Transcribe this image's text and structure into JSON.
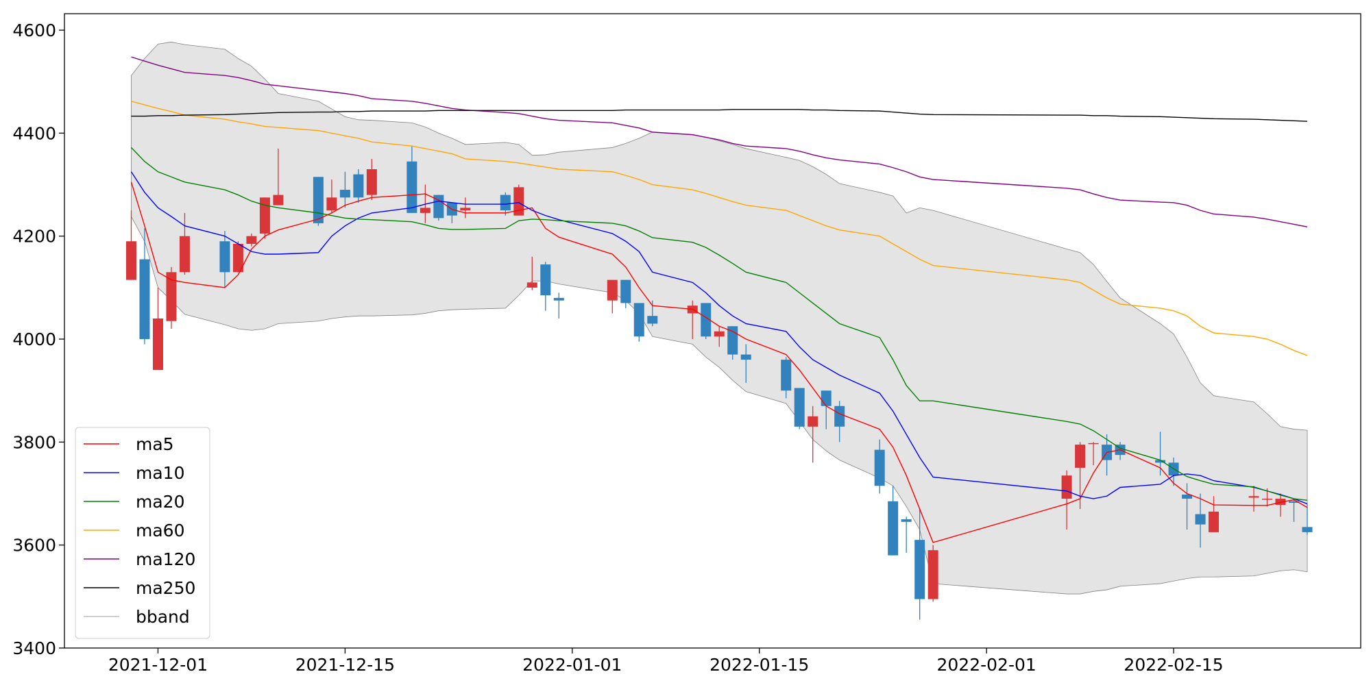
{
  "chart_data": {
    "type": "candlestick",
    "x": [
      "2021-11-29",
      "2021-11-30",
      "2021-12-01",
      "2021-12-02",
      "2021-12-03",
      "2021-12-06",
      "2021-12-07",
      "2021-12-08",
      "2021-12-09",
      "2021-12-10",
      "2021-12-13",
      "2021-12-14",
      "2021-12-15",
      "2021-12-16",
      "2021-12-17",
      "2021-12-20",
      "2021-12-21",
      "2021-12-22",
      "2021-12-23",
      "2021-12-24",
      "2021-12-27",
      "2021-12-28",
      "2021-12-29",
      "2021-12-30",
      "2021-12-31",
      "2022-01-04",
      "2022-01-05",
      "2022-01-06",
      "2022-01-07",
      "2022-01-10",
      "2022-01-11",
      "2022-01-12",
      "2022-01-13",
      "2022-01-14",
      "2022-01-17",
      "2022-01-18",
      "2022-01-19",
      "2022-01-20",
      "2022-01-21",
      "2022-01-24",
      "2022-01-25",
      "2022-01-26",
      "2022-01-27",
      "2022-01-28",
      "2022-02-07",
      "2022-02-08",
      "2022-02-09",
      "2022-02-10",
      "2022-02-11",
      "2022-02-14",
      "2022-02-15",
      "2022-02-16",
      "2022-02-17",
      "2022-02-18",
      "2022-02-21",
      "2022-02-22",
      "2022-02-23",
      "2022-02-24",
      "2022-02-25"
    ],
    "open": [
      4115,
      4155,
      3940,
      4035,
      4130,
      4190,
      4130,
      4185,
      4205,
      4260,
      4315,
      4250,
      4290,
      4320,
      4280,
      4345,
      4245,
      4280,
      4265,
      4250,
      4280,
      4240,
      4100,
      4145,
      4080,
      4075,
      4115,
      4070,
      4045,
      4050,
      4070,
      4005,
      4025,
      3970,
      3960,
      3905,
      3830,
      3900,
      3870,
      3785,
      3685,
      3650,
      3610,
      3495,
      3690,
      3750,
      3796,
      3795,
      3795,
      3765,
      3760,
      3698,
      3660,
      3625,
      3692,
      3688,
      3678,
      3685,
      3635
    ],
    "high": [
      4250,
      4215,
      4100,
      4140,
      4245,
      4210,
      4190,
      4205,
      4275,
      4370,
      4315,
      4310,
      4325,
      4330,
      4350,
      4375,
      4300,
      4280,
      4265,
      4275,
      4285,
      4300,
      4160,
      4150,
      4090,
      4115,
      4115,
      4070,
      4075,
      4075,
      4070,
      4025,
      4025,
      3990,
      3965,
      3905,
      3870,
      3900,
      3880,
      3805,
      3715,
      3655,
      3670,
      3600,
      3745,
      3800,
      3800,
      3815,
      3800,
      3820,
      3770,
      3720,
      3700,
      3695,
      3715,
      3710,
      3700,
      3690,
      3680
    ],
    "low": [
      4115,
      3990,
      3940,
      4020,
      4125,
      4100,
      4130,
      4180,
      4195,
      4260,
      4220,
      4245,
      4255,
      4265,
      4270,
      4245,
      4225,
      4230,
      4225,
      4235,
      4240,
      4240,
      4095,
      4055,
      4040,
      4050,
      4060,
      3995,
      4025,
      4000,
      4000,
      3985,
      3960,
      3915,
      3885,
      3825,
      3760,
      3825,
      3800,
      3700,
      3580,
      3585,
      3455,
      3490,
      3630,
      3670,
      3755,
      3735,
      3765,
      3735,
      3715,
      3630,
      3595,
      3625,
      3665,
      3675,
      3655,
      3645,
      3620
    ],
    "close": [
      4190,
      4000,
      4040,
      4130,
      4200,
      4130,
      4185,
      4200,
      4275,
      4280,
      4225,
      4275,
      4275,
      4275,
      4330,
      4245,
      4255,
      4235,
      4240,
      4255,
      4250,
      4295,
      4110,
      4085,
      4075,
      4115,
      4070,
      4005,
      4030,
      4065,
      4005,
      4015,
      3970,
      3960,
      3900,
      3830,
      3850,
      3870,
      3830,
      3715,
      3580,
      3645,
      3495,
      3590,
      3735,
      3795,
      3798,
      3765,
      3775,
      3760,
      3735,
      3690,
      3640,
      3665,
      3695,
      3690,
      3690,
      3682,
      3625
    ],
    "up_color": "#d9363a",
    "down_color": "#3182bd",
    "lines": [
      {
        "name": "ma5",
        "color": "#ff0000",
        "values": [
          4305,
          4220,
          4130,
          4115,
          4110,
          4100,
          4125,
          4175,
          4200,
          4212,
          4233,
          4245,
          4260,
          4268,
          4275,
          4280,
          4282,
          4270,
          4252,
          4245,
          4245,
          4250,
          4255,
          4215,
          4198,
          4165,
          4140,
          4100,
          4065,
          4058,
          4042,
          4025,
          4015,
          4000,
          3970,
          3940,
          3905,
          3870,
          3855,
          3825,
          3790,
          3735,
          3670,
          3605,
          3680,
          3690,
          3740,
          3780,
          3785,
          3750,
          3720,
          3700,
          3690,
          3678,
          3677,
          3677,
          3683,
          3688,
          3673
        ]
      },
      {
        "name": "ma10",
        "color": "#0000ff",
        "values": [
          4325,
          4285,
          4255,
          4238,
          4220,
          4200,
          4185,
          4170,
          4165,
          4165,
          4168,
          4200,
          4220,
          4235,
          4245,
          4255,
          4262,
          4268,
          4265,
          4262,
          4262,
          4265,
          4250,
          4240,
          4232,
          4205,
          4190,
          4170,
          4130,
          4110,
          4090,
          4065,
          4045,
          4030,
          4015,
          3985,
          3960,
          3945,
          3930,
          3895,
          3860,
          3815,
          3770,
          3732,
          3705,
          3695,
          3690,
          3695,
          3712,
          3718,
          3735,
          3738,
          3735,
          3725,
          3712,
          3705,
          3698,
          3690,
          3680
        ]
      },
      {
        "name": "ma20",
        "color": "#008000",
        "values": [
          4372,
          4345,
          4325,
          4315,
          4305,
          4290,
          4280,
          4268,
          4260,
          4255,
          4245,
          4240,
          4235,
          4233,
          4232,
          4228,
          4222,
          4215,
          4213,
          4213,
          4215,
          4230,
          4233,
          4232,
          4230,
          4225,
          4220,
          4210,
          4197,
          4188,
          4178,
          4163,
          4147,
          4130,
          4110,
          4090,
          4070,
          4050,
          4030,
          4003,
          3960,
          3910,
          3880,
          3880,
          3840,
          3835,
          3822,
          3805,
          3788,
          3765,
          3748,
          3733,
          3725,
          3718,
          3713,
          3705,
          3697,
          3690,
          3687
        ]
      },
      {
        "name": "ma60",
        "color": "#ffa500",
        "values": [
          4462,
          4455,
          4448,
          4442,
          4435,
          4427,
          4422,
          4418,
          4413,
          4411,
          4405,
          4400,
          4395,
          4390,
          4383,
          4375,
          4370,
          4365,
          4360,
          4350,
          4345,
          4342,
          4338,
          4334,
          4330,
          4325,
          4318,
          4310,
          4300,
          4290,
          4283,
          4275,
          4267,
          4260,
          4250,
          4240,
          4230,
          4220,
          4212,
          4200,
          4185,
          4170,
          4155,
          4143,
          4115,
          4110,
          4095,
          4080,
          4068,
          4060,
          4055,
          4045,
          4025,
          4012,
          4005,
          4000,
          3990,
          3978,
          3968
        ]
      },
      {
        "name": "ma120",
        "color": "#800080",
        "values": [
          4548,
          4540,
          4532,
          4525,
          4518,
          4512,
          4508,
          4502,
          4495,
          4492,
          4483,
          4480,
          4477,
          4473,
          4467,
          4462,
          4458,
          4453,
          4448,
          4445,
          4440,
          4438,
          4433,
          4428,
          4425,
          4420,
          4415,
          4410,
          4402,
          4397,
          4392,
          4387,
          4380,
          4375,
          4370,
          4365,
          4358,
          4352,
          4348,
          4340,
          4333,
          4325,
          4315,
          4310,
          4293,
          4290,
          4282,
          4275,
          4270,
          4266,
          4265,
          4260,
          4250,
          4243,
          4237,
          4233,
          4228,
          4223,
          4218
        ]
      },
      {
        "name": "ma250",
        "color": "#000000",
        "values": [
          4433,
          4433,
          4434,
          4434,
          4435,
          4436,
          4437,
          4438,
          4439,
          4440,
          4441,
          4441,
          4442,
          4442,
          4443,
          4443,
          4443,
          4444,
          4444,
          4444,
          4444,
          4444,
          4444,
          4444,
          4444,
          4444,
          4445,
          4445,
          4445,
          4445,
          4445,
          4445,
          4446,
          4446,
          4446,
          4446,
          4445,
          4445,
          4444,
          4443,
          4441,
          4439,
          4437,
          4436,
          4435,
          4435,
          4434,
          4434,
          4433,
          4432,
          4431,
          4430,
          4429,
          4428,
          4427,
          4426,
          4425,
          4424,
          4423
        ]
      }
    ],
    "band": {
      "name": "bband",
      "color": "#808080",
      "fill": "#e4e4e4",
      "upper": [
        4512,
        4545,
        4573,
        4577,
        4572,
        4563,
        4545,
        4530,
        4505,
        4477,
        4462,
        4447,
        4432,
        4426,
        4425,
        4420,
        4412,
        4400,
        4390,
        4378,
        4382,
        4378,
        4357,
        4358,
        4363,
        4372,
        4380,
        4390,
        4402,
        4397,
        4392,
        4385,
        4378,
        4370,
        4353,
        4347,
        4335,
        4320,
        4302,
        4285,
        4278,
        4245,
        4255,
        4250,
        4175,
        4168,
        4145,
        4112,
        4080,
        4030,
        4010,
        3965,
        3915,
        3890,
        3878,
        3855,
        3830,
        3825,
        3823
      ],
      "lower": [
        4238,
        4190,
        4100,
        4075,
        4048,
        4028,
        4020,
        4017,
        4020,
        4030,
        4035,
        4040,
        4043,
        4045,
        4045,
        4047,
        4050,
        4055,
        4057,
        4058,
        4060,
        4085,
        4113,
        4113,
        4107,
        4090,
        4075,
        4050,
        4005,
        3990,
        3965,
        3945,
        3920,
        3898,
        3875,
        3840,
        3805,
        3783,
        3765,
        3730,
        3715,
        3675,
        3630,
        3525,
        3505,
        3505,
        3510,
        3513,
        3520,
        3525,
        3530,
        3535,
        3538,
        3538,
        3540,
        3545,
        3550,
        3552,
        3548
      ]
    },
    "xlim": [
      "2021-11-24",
      "2022-03-01"
    ],
    "xticks": [
      "2021-12-01",
      "2021-12-15",
      "2022-01-01",
      "2022-01-15",
      "2022-02-01",
      "2022-02-15"
    ],
    "ylim": [
      3400,
      4632
    ],
    "yticks": [
      3400,
      3600,
      3800,
      4000,
      4200,
      4400,
      4600
    ],
    "legend": "lower left"
  }
}
